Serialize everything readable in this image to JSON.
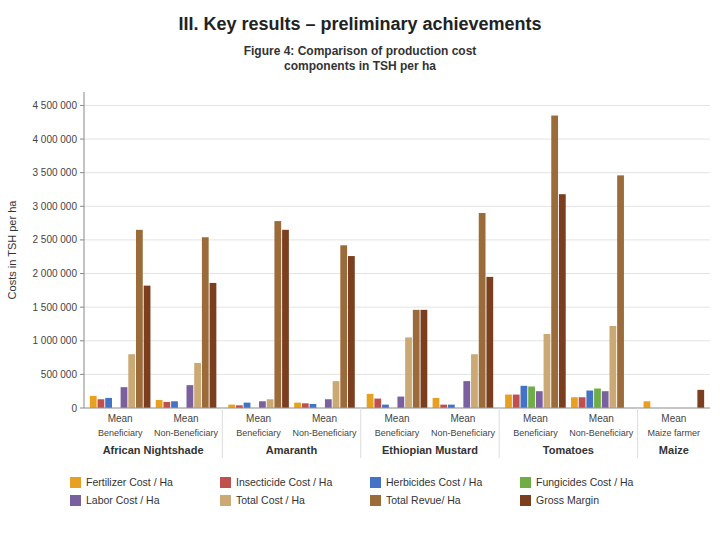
{
  "chart_data": {
    "type": "bar",
    "title": "III.    Key results – preliminary achievements",
    "subtitle": "Figure 4: Comparison of production cost\ncomponents in TSH per ha",
    "y_label": "Costs in TSH per ha",
    "categories": [
      "Beneficiary",
      "Non-Beneficiary",
      "Beneficiary",
      "Non-Beneficiary",
      "Beneficiary",
      "Non-Beneficiary",
      "Beneficiary",
      "Non-Beneficiary",
      "Maize farmer"
    ],
    "category_groups": [
      "African Nightshade",
      "African Nightshade",
      "Amaranth",
      "Amaranth",
      "Ethiopian Mustard",
      "Ethiopian Mustard",
      "Tomatoes",
      "Tomatoes",
      "Maize"
    ],
    "category_sublabels": [
      "Mean",
      "Mean",
      "Mean",
      "Mean",
      "Mean",
      "Mean",
      "Mean",
      "Mean",
      "Mean"
    ],
    "series": [
      {
        "name": "Fertilizer Cost / Ha",
        "color": "#E8A020",
        "values": [
          180000,
          120000,
          50000,
          80000,
          210000,
          150000,
          200000,
          160000,
          100000
        ]
      },
      {
        "name": "Insecticide Cost / Ha",
        "color": "#C0504D",
        "values": [
          130000,
          90000,
          40000,
          70000,
          140000,
          50000,
          200000,
          160000,
          0
        ]
      },
      {
        "name": "Herbicides Cost / Ha",
        "color": "#4472C4",
        "values": [
          150000,
          100000,
          80000,
          60000,
          50000,
          50000,
          330000,
          260000,
          0
        ]
      },
      {
        "name": "Fungicides Cost / Ha",
        "color": "#70AD47",
        "values": [
          0,
          0,
          0,
          0,
          0,
          0,
          320000,
          290000,
          0
        ]
      },
      {
        "name": "Labor Cost / Ha",
        "color": "#7B60A0",
        "values": [
          310000,
          340000,
          100000,
          130000,
          170000,
          400000,
          250000,
          250000,
          0
        ]
      },
      {
        "name": "Total Cost / Ha",
        "color": "#CBA975",
        "values": [
          800000,
          670000,
          130000,
          400000,
          1050000,
          800000,
          1100000,
          1220000,
          0
        ]
      },
      {
        "name": "Total Revue/ Ha",
        "color": "#9B6B3A",
        "values": [
          2650000,
          2540000,
          2780000,
          2420000,
          1460000,
          2900000,
          4350000,
          3460000,
          0
        ]
      },
      {
        "name": "Gross Margin",
        "color": "#7B3F20",
        "values": [
          1820000,
          1860000,
          2650000,
          2260000,
          1460000,
          1950000,
          3180000,
          0,
          270000
        ]
      }
    ],
    "ylim": [
      0,
      4700000
    ],
    "yticks": [
      0,
      {
        "value": 500000,
        "label": "500 000"
      },
      {
        "value": 1000000,
        "label": "1 000 000"
      },
      {
        "value": 1500000,
        "label": "1 500 000"
      },
      {
        "value": 2000000,
        "label": "2 000 000"
      },
      {
        "value": 2500000,
        "label": "2 500 000"
      },
      {
        "value": 3000000,
        "label": "3 000 000"
      },
      {
        "value": 3500000,
        "label": "3 500 000"
      },
      {
        "value": 4000000,
        "label": "4 000 000"
      },
      {
        "value": 4500000,
        "label": "4 500 000"
      }
    ],
    "grid": true,
    "legend": "bottom"
  }
}
